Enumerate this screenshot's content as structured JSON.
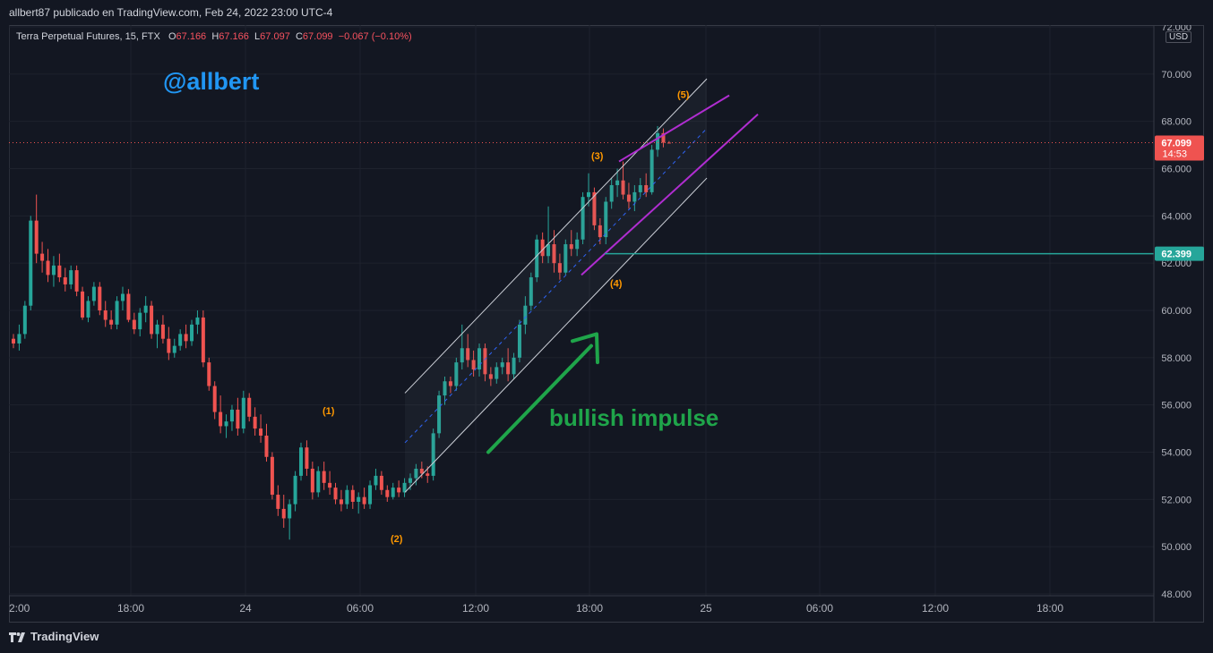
{
  "publisher": "allbert87 publicado en TradingView.com, Feb 24, 2022 23:00 UTC-4",
  "legend": {
    "symbol": "Terra Perpetual Futures, 15, FTX",
    "open_label": "O",
    "open": "67.166",
    "high_label": "H",
    "high": "67.166",
    "low_label": "L",
    "low": "67.097",
    "close_label": "C",
    "close": "67.099",
    "change": "−0.067 (−0.10%)"
  },
  "currency": "USD",
  "footer": {
    "brand": "TradingView"
  },
  "colors": {
    "up": "#26a69a",
    "down": "#ef5350",
    "channel": "#d1d4dc",
    "wedge": "#b02dd1",
    "arrow": "#1fa54a",
    "level": "#26a69a",
    "watermark": "#2196f3",
    "wave": "#ff9800"
  },
  "chart_data": {
    "type": "candlestick",
    "y_axis": {
      "min": 48,
      "max": 72,
      "ticks": [
        "48.000",
        "50.000",
        "52.000",
        "54.000",
        "56.000",
        "58.000",
        "60.000",
        "62.000",
        "64.000",
        "66.000",
        "68.000",
        "70.000",
        "72.000"
      ]
    },
    "x_axis": {
      "ticks": [
        "2:00",
        "18:00",
        "24",
        "06:00",
        "12:00",
        "18:00",
        "25",
        "06:00",
        "12:00",
        "18:00"
      ]
    },
    "last_price": {
      "value": 67.099,
      "label": "67.099",
      "countdown": "14:53"
    },
    "level": {
      "value": 62.399,
      "label": "62.399"
    },
    "annotations": {
      "watermark": "@allbert",
      "impulse": "bullish impulse",
      "waves": [
        {
          "label": "(1)",
          "price": 55.6
        },
        {
          "label": "(2)",
          "price": 50.2
        },
        {
          "label": "(3)",
          "price": 66.4
        },
        {
          "label": "(4)",
          "price": 61.0
        },
        {
          "label": "(5)",
          "price": 69.0
        }
      ]
    },
    "ohlc": [
      [
        58.8,
        59.0,
        58.4,
        58.6
      ],
      [
        58.6,
        59.4,
        58.3,
        59.0
      ],
      [
        59.0,
        60.4,
        58.8,
        60.2
      ],
      [
        60.2,
        64.0,
        60.0,
        63.8
      ],
      [
        63.8,
        64.9,
        62.0,
        62.4
      ],
      [
        62.4,
        62.9,
        61.6,
        62.1
      ],
      [
        62.1,
        62.6,
        61.2,
        61.5
      ],
      [
        61.5,
        62.3,
        61.0,
        61.9
      ],
      [
        61.9,
        62.4,
        61.2,
        61.4
      ],
      [
        61.4,
        61.8,
        60.8,
        61.1
      ],
      [
        61.1,
        61.9,
        60.9,
        61.7
      ],
      [
        61.7,
        61.9,
        60.6,
        60.8
      ],
      [
        60.8,
        61.0,
        59.6,
        59.7
      ],
      [
        59.7,
        60.6,
        59.5,
        60.4
      ],
      [
        60.4,
        61.2,
        60.2,
        61.0
      ],
      [
        61.0,
        61.2,
        59.8,
        60.0
      ],
      [
        60.0,
        60.4,
        59.3,
        59.6
      ],
      [
        59.6,
        60.0,
        59.2,
        59.4
      ],
      [
        59.4,
        60.6,
        59.2,
        60.4
      ],
      [
        60.4,
        61.0,
        60.0,
        60.7
      ],
      [
        60.7,
        60.9,
        59.5,
        59.6
      ],
      [
        59.6,
        59.9,
        59.0,
        59.2
      ],
      [
        59.2,
        60.1,
        58.9,
        59.9
      ],
      [
        59.9,
        60.6,
        59.5,
        60.2
      ],
      [
        60.2,
        60.4,
        58.8,
        59.0
      ],
      [
        59.0,
        59.6,
        58.4,
        59.4
      ],
      [
        59.4,
        59.8,
        58.6,
        58.8
      ],
      [
        58.8,
        59.3,
        57.9,
        58.2
      ],
      [
        58.2,
        58.8,
        58.0,
        58.5
      ],
      [
        58.5,
        59.2,
        58.3,
        59.0
      ],
      [
        59.0,
        59.4,
        58.4,
        58.7
      ],
      [
        58.7,
        59.6,
        58.5,
        59.4
      ],
      [
        59.4,
        60.0,
        59.0,
        59.7
      ],
      [
        59.7,
        60.0,
        57.6,
        57.8
      ],
      [
        57.8,
        58.0,
        56.6,
        56.8
      ],
      [
        56.8,
        57.0,
        55.4,
        55.7
      ],
      [
        55.7,
        56.4,
        54.8,
        55.1
      ],
      [
        55.1,
        55.6,
        54.6,
        55.3
      ],
      [
        55.3,
        56.0,
        54.9,
        55.8
      ],
      [
        55.8,
        56.3,
        54.7,
        55.0
      ],
      [
        55.0,
        56.6,
        54.8,
        56.3
      ],
      [
        56.3,
        56.5,
        55.3,
        55.5
      ],
      [
        55.5,
        55.9,
        54.7,
        55.0
      ],
      [
        55.0,
        55.6,
        54.4,
        54.7
      ],
      [
        54.7,
        55.2,
        53.6,
        53.8
      ],
      [
        53.8,
        54.0,
        52.0,
        52.2
      ],
      [
        52.2,
        52.6,
        51.3,
        51.6
      ],
      [
        51.6,
        52.2,
        50.8,
        51.2
      ],
      [
        51.2,
        52.0,
        50.3,
        51.8
      ],
      [
        51.8,
        53.2,
        51.5,
        53.0
      ],
      [
        53.0,
        54.4,
        52.8,
        54.2
      ],
      [
        54.2,
        54.5,
        53.0,
        53.3
      ],
      [
        53.3,
        53.6,
        52.0,
        52.3
      ],
      [
        52.3,
        53.4,
        52.1,
        53.2
      ],
      [
        53.2,
        53.6,
        52.4,
        52.7
      ],
      [
        52.7,
        53.2,
        52.2,
        52.5
      ],
      [
        52.5,
        52.7,
        51.8,
        52.0
      ],
      [
        52.0,
        52.4,
        51.5,
        51.8
      ],
      [
        51.8,
        52.6,
        51.6,
        52.4
      ],
      [
        52.4,
        52.6,
        51.6,
        51.9
      ],
      [
        51.9,
        52.3,
        51.4,
        52.1
      ],
      [
        52.1,
        52.5,
        51.6,
        51.8
      ],
      [
        51.8,
        52.8,
        51.6,
        52.6
      ],
      [
        52.6,
        53.3,
        52.4,
        53.0
      ],
      [
        53.0,
        53.2,
        52.2,
        52.4
      ],
      [
        52.4,
        52.6,
        51.9,
        52.1
      ],
      [
        52.1,
        52.7,
        52.0,
        52.5
      ],
      [
        52.5,
        52.8,
        52.1,
        52.3
      ],
      [
        52.3,
        52.9,
        52.1,
        52.7
      ],
      [
        52.7,
        53.1,
        52.4,
        52.9
      ],
      [
        52.9,
        53.5,
        52.6,
        53.3
      ],
      [
        53.3,
        53.6,
        52.9,
        53.1
      ],
      [
        53.1,
        53.4,
        52.7,
        53.0
      ],
      [
        53.0,
        55.0,
        52.8,
        54.8
      ],
      [
        54.8,
        56.6,
        54.6,
        56.4
      ],
      [
        56.4,
        57.2,
        56.0,
        57.0
      ],
      [
        57.0,
        57.2,
        56.5,
        56.8
      ],
      [
        56.8,
        58.0,
        56.6,
        57.8
      ],
      [
        57.8,
        59.4,
        57.5,
        58.4
      ],
      [
        58.4,
        59.0,
        57.6,
        57.9
      ],
      [
        57.9,
        58.3,
        57.2,
        57.5
      ],
      [
        57.5,
        58.6,
        57.2,
        58.4
      ],
      [
        58.4,
        58.6,
        57.0,
        57.3
      ],
      [
        57.3,
        57.6,
        56.8,
        57.1
      ],
      [
        57.1,
        57.8,
        56.9,
        57.6
      ],
      [
        57.6,
        58.0,
        57.3,
        57.8
      ],
      [
        57.8,
        58.4,
        57.0,
        57.3
      ],
      [
        57.3,
        58.2,
        57.1,
        58.0
      ],
      [
        58.0,
        59.6,
        57.8,
        59.4
      ],
      [
        59.4,
        60.6,
        59.0,
        60.2
      ],
      [
        60.2,
        61.6,
        60.0,
        61.4
      ],
      [
        61.4,
        63.2,
        61.2,
        63.0
      ],
      [
        63.0,
        63.3,
        62.0,
        62.3
      ],
      [
        62.3,
        64.4,
        62.0,
        62.8
      ],
      [
        62.8,
        63.4,
        61.6,
        62.0
      ],
      [
        62.0,
        62.4,
        61.3,
        61.6
      ],
      [
        61.6,
        63.0,
        61.5,
        62.8
      ],
      [
        62.8,
        63.4,
        62.3,
        62.6
      ],
      [
        62.6,
        63.3,
        62.3,
        63.0
      ],
      [
        63.0,
        65.0,
        62.8,
        64.8
      ],
      [
        64.8,
        65.8,
        64.4,
        65.0
      ],
      [
        65.0,
        65.2,
        63.4,
        63.6
      ],
      [
        63.6,
        63.9,
        62.8,
        63.1
      ],
      [
        63.1,
        64.8,
        62.8,
        64.6
      ],
      [
        64.6,
        65.6,
        64.3,
        65.3
      ],
      [
        65.3,
        66.0,
        64.8,
        65.5
      ],
      [
        65.5,
        66.3,
        64.7,
        64.9
      ],
      [
        64.9,
        65.4,
        64.3,
        64.6
      ],
      [
        64.6,
        65.3,
        64.2,
        65.0
      ],
      [
        65.0,
        65.6,
        64.8,
        65.3
      ],
      [
        65.3,
        65.8,
        64.8,
        65.0
      ],
      [
        65.0,
        67.0,
        64.9,
        66.8
      ],
      [
        66.8,
        67.8,
        66.5,
        67.5
      ],
      [
        67.5,
        67.7,
        66.9,
        67.1
      ],
      [
        67.1,
        67.166,
        67.097,
        67.099
      ]
    ]
  }
}
